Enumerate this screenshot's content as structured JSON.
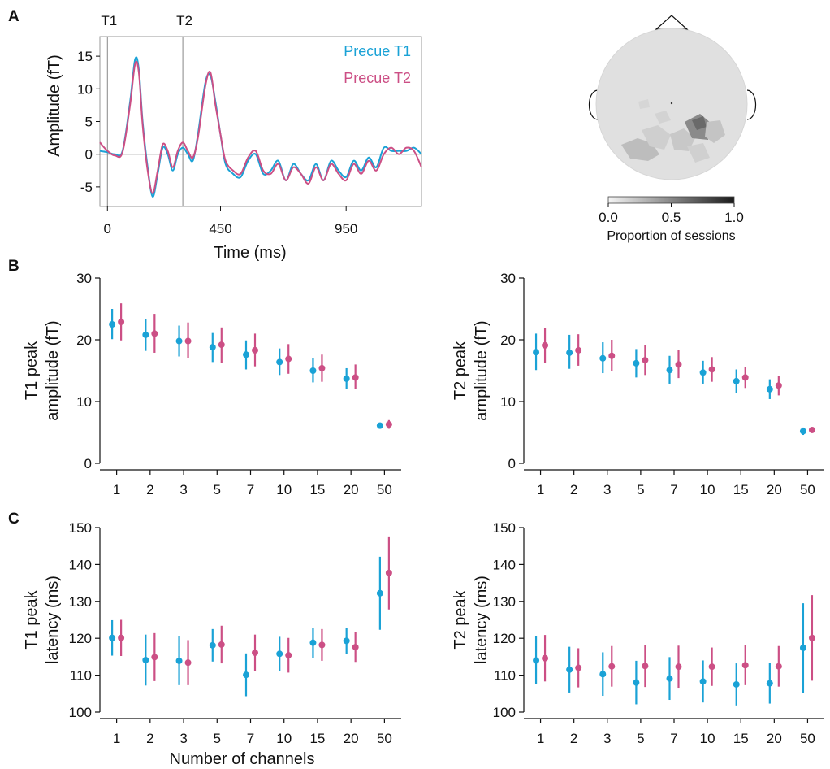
{
  "colors": {
    "t1": "#1aa2d6",
    "t2": "#cc4f85",
    "axis": "#111111",
    "marker": "#888888",
    "head": "#e0e0e0"
  },
  "panels": {
    "a": "A",
    "b": "B",
    "c": "C"
  },
  "panel_a": {
    "markers": [
      "T1",
      "T2"
    ],
    "legend": [
      "Precue T1",
      "Precue T2"
    ],
    "colorbar": {
      "ticks": [
        "0.0",
        "0.5",
        "1.0"
      ],
      "label": "Proportion of sessions"
    }
  },
  "xlabel_channels": "Number of channels",
  "chart_data": [
    {
      "type": "line",
      "panel": "A",
      "xlabel": "Time (ms)",
      "ylabel": "Amplitude (fT)",
      "xlim": [
        -30,
        1250
      ],
      "ylim": [
        -8,
        18
      ],
      "xticks": [
        0,
        450,
        950
      ],
      "yticks": [
        -5,
        0,
        5,
        10,
        15
      ],
      "vlines": [
        {
          "label": "T1",
          "x": 0
        },
        {
          "label": "T2",
          "x": 300
        }
      ],
      "legend_position": "top-right",
      "series": [
        {
          "name": "Precue T1",
          "x": [
            -30,
            0,
            30,
            60,
            90,
            110,
            125,
            140,
            160,
            180,
            200,
            220,
            240,
            260,
            280,
            300,
            320,
            340,
            360,
            390,
            410,
            430,
            450,
            470,
            500,
            530,
            560,
            590,
            620,
            650,
            680,
            710,
            740,
            770,
            800,
            830,
            860,
            890,
            920,
            950,
            980,
            1010,
            1040,
            1070,
            1100,
            1130,
            1160,
            1190,
            1220,
            1250
          ],
          "values": [
            0.5,
            0.3,
            0,
            0.5,
            8,
            14.5,
            13,
            5,
            -2,
            -6.5,
            -3,
            1,
            0,
            -2.5,
            0,
            1,
            0,
            -1,
            3,
            11,
            12,
            8,
            3,
            -1.5,
            -3,
            -3.5,
            -1,
            0,
            -3,
            -2.5,
            -1,
            -4,
            -1.5,
            -3,
            -4,
            -1.5,
            -4,
            -1,
            -2.5,
            -3.5,
            -1,
            -2.5,
            -0.5,
            -2,
            1,
            0.5,
            0.5,
            0.5,
            1,
            0
          ]
        },
        {
          "name": "Precue T2",
          "x": [
            -30,
            0,
            30,
            60,
            90,
            110,
            125,
            140,
            160,
            180,
            200,
            220,
            240,
            260,
            280,
            300,
            320,
            340,
            360,
            390,
            410,
            430,
            450,
            470,
            500,
            530,
            560,
            590,
            620,
            650,
            680,
            710,
            740,
            770,
            800,
            830,
            860,
            890,
            920,
            950,
            980,
            1010,
            1040,
            1070,
            1100,
            1130,
            1160,
            1190,
            1220,
            1250
          ],
          "values": [
            1.8,
            0.5,
            -0.2,
            0.3,
            7.5,
            13.8,
            12.5,
            4.5,
            -2.5,
            -6,
            -2.5,
            1.5,
            0.5,
            -2,
            0.5,
            1.8,
            0.5,
            -0.5,
            2.5,
            10.5,
            12.5,
            7.5,
            3,
            -1,
            -2.5,
            -3,
            -0.5,
            0.5,
            -2.5,
            -3,
            -1.5,
            -4,
            -2,
            -3,
            -4.5,
            -2,
            -4,
            -1.5,
            -3,
            -4,
            -1.5,
            -3,
            -1,
            -2.5,
            0,
            1,
            0,
            1,
            0.5,
            -2
          ]
        }
      ]
    },
    {
      "type": "scatter",
      "panel": "B-left",
      "ylabel": [
        "T1 peak",
        "amplitude (fT)"
      ],
      "categories": [
        "1",
        "2",
        "3",
        "5",
        "7",
        "10",
        "15",
        "20",
        "50"
      ],
      "ylim": [
        0,
        30
      ],
      "yticks": [
        0,
        10,
        20,
        30
      ],
      "series": [
        {
          "name": "Precue T1",
          "values": [
            22.5,
            20.8,
            19.8,
            18.8,
            17.6,
            16.4,
            15.0,
            13.7,
            6.1
          ],
          "lower": [
            20.1,
            18.2,
            17.3,
            16.4,
            15.2,
            14.3,
            13.1,
            12.0,
            5.6
          ],
          "upper": [
            25.0,
            23.3,
            22.3,
            21.1,
            19.9,
            18.6,
            17.0,
            15.4,
            6.6
          ]
        },
        {
          "name": "Precue T2",
          "values": [
            22.9,
            21.0,
            19.8,
            19.2,
            18.3,
            16.9,
            15.4,
            13.9,
            6.3
          ],
          "lower": [
            19.9,
            17.9,
            17.1,
            16.3,
            15.7,
            14.5,
            13.2,
            12.0,
            5.6
          ],
          "upper": [
            25.9,
            24.2,
            22.8,
            22.0,
            21.0,
            19.3,
            17.6,
            16.0,
            7.0
          ]
        }
      ]
    },
    {
      "type": "scatter",
      "panel": "B-right",
      "ylabel": [
        "T2 peak",
        "amplitude (fT)"
      ],
      "categories": [
        "1",
        "2",
        "3",
        "5",
        "7",
        "10",
        "15",
        "20",
        "50"
      ],
      "ylim": [
        0,
        30
      ],
      "yticks": [
        0,
        10,
        20,
        30
      ],
      "series": [
        {
          "name": "Precue T1",
          "values": [
            18.0,
            17.9,
            17.0,
            16.2,
            15.1,
            14.7,
            13.3,
            12.0,
            5.2
          ],
          "lower": [
            15.1,
            15.3,
            14.6,
            13.9,
            12.9,
            12.9,
            11.4,
            10.4,
            4.6
          ],
          "upper": [
            21.0,
            20.8,
            19.6,
            18.5,
            17.4,
            16.6,
            15.2,
            13.6,
            5.8
          ]
        },
        {
          "name": "Precue T2",
          "values": [
            19.1,
            18.3,
            17.4,
            16.7,
            16.0,
            15.2,
            13.9,
            12.6,
            5.4
          ],
          "lower": [
            16.3,
            15.8,
            15.0,
            14.3,
            13.8,
            13.2,
            12.2,
            11.0,
            5.0
          ],
          "upper": [
            21.9,
            20.9,
            20.0,
            19.1,
            18.3,
            17.2,
            15.6,
            14.2,
            5.8
          ]
        }
      ]
    },
    {
      "type": "scatter",
      "panel": "C-left",
      "ylabel": [
        "T1 peak",
        "latency (ms)"
      ],
      "categories": [
        "1",
        "2",
        "3",
        "5",
        "7",
        "10",
        "15",
        "20",
        "50"
      ],
      "ylim": [
        100,
        150
      ],
      "yticks": [
        100,
        110,
        120,
        130,
        140,
        150
      ],
      "series": [
        {
          "name": "Precue T1",
          "values": [
            120.1,
            114.1,
            113.9,
            118.1,
            110.1,
            115.8,
            118.8,
            119.3,
            132.2
          ],
          "lower": [
            115.3,
            107.2,
            107.3,
            113.7,
            104.3,
            111.2,
            114.7,
            115.7,
            122.3
          ],
          "upper": [
            124.9,
            121.0,
            120.5,
            122.5,
            115.9,
            120.4,
            122.9,
            122.9,
            142.1
          ]
        },
        {
          "name": "Precue T2",
          "values": [
            120.1,
            114.9,
            113.4,
            118.3,
            116.1,
            115.4,
            118.2,
            117.6,
            137.7
          ],
          "lower": [
            115.2,
            108.4,
            107.3,
            113.2,
            111.2,
            110.7,
            113.9,
            113.6,
            127.8
          ],
          "upper": [
            125.0,
            121.4,
            119.5,
            123.4,
            121.0,
            120.1,
            122.5,
            121.6,
            147.6
          ]
        }
      ]
    },
    {
      "type": "scatter",
      "panel": "C-right",
      "ylabel": [
        "T2 peak",
        "latency (ms)"
      ],
      "categories": [
        "1",
        "2",
        "3",
        "5",
        "7",
        "10",
        "15",
        "20",
        "50"
      ],
      "ylim": [
        100,
        150
      ],
      "yticks": [
        100,
        110,
        120,
        130,
        140,
        150
      ],
      "series": [
        {
          "name": "Precue T1",
          "values": [
            114.0,
            111.5,
            110.3,
            108.0,
            109.1,
            108.3,
            107.5,
            107.8,
            117.4
          ],
          "lower": [
            107.5,
            105.3,
            104.4,
            102.1,
            103.3,
            102.6,
            101.8,
            102.3,
            105.3
          ],
          "upper": [
            120.5,
            117.7,
            116.2,
            113.9,
            114.9,
            114.0,
            113.2,
            113.3,
            129.5
          ]
        },
        {
          "name": "Precue T2",
          "values": [
            114.6,
            112.0,
            112.4,
            112.5,
            112.3,
            112.3,
            112.7,
            112.4,
            120.1
          ],
          "lower": [
            108.3,
            106.7,
            106.9,
            106.8,
            106.6,
            107.1,
            107.3,
            106.9,
            108.5
          ],
          "upper": [
            120.9,
            117.3,
            117.9,
            118.2,
            118.0,
            117.5,
            118.1,
            117.9,
            131.7
          ]
        }
      ]
    }
  ]
}
